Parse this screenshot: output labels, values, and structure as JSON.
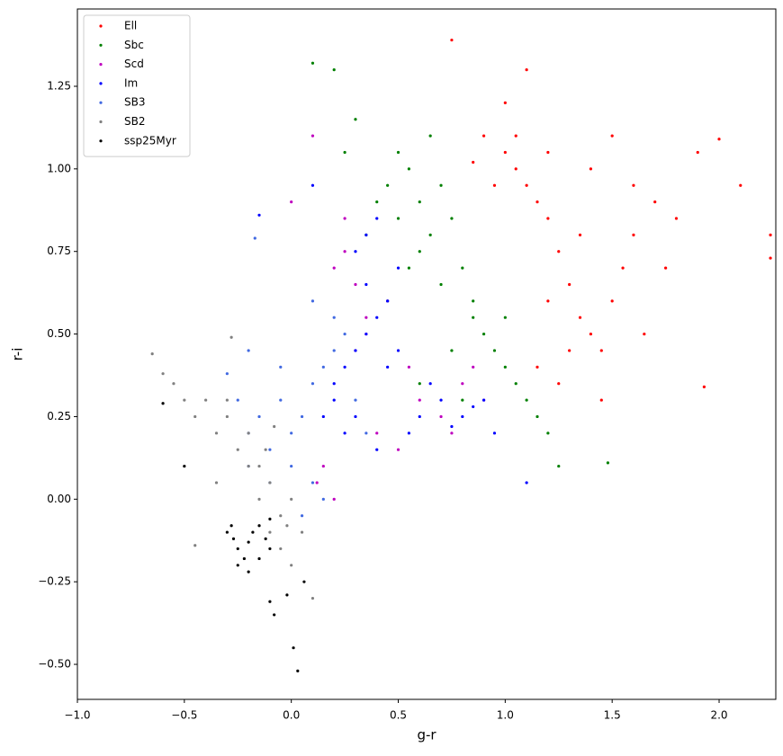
{
  "chart_data": {
    "type": "scatter",
    "xlabel": "g-r",
    "ylabel": "r-i",
    "xlim": [
      -1.0,
      2.265
    ],
    "ylim": [
      -0.606,
      1.484
    ],
    "xticks": [
      {
        "value": -1.0,
        "label": "−1.0"
      },
      {
        "value": -0.5,
        "label": "−0.5"
      },
      {
        "value": 0.0,
        "label": "0.0"
      },
      {
        "value": 0.5,
        "label": "0.5"
      },
      {
        "value": 1.0,
        "label": "1.0"
      },
      {
        "value": 1.5,
        "label": "1.5"
      },
      {
        "value": 2.0,
        "label": "2.0"
      }
    ],
    "yticks": [
      {
        "value": -0.5,
        "label": "−0.50"
      },
      {
        "value": -0.25,
        "label": "−0.25"
      },
      {
        "value": 0.0,
        "label": "0.00"
      },
      {
        "value": 0.25,
        "label": "0.25"
      },
      {
        "value": 0.5,
        "label": "0.50"
      },
      {
        "value": 0.75,
        "label": "0.75"
      },
      {
        "value": 1.0,
        "label": "1.00"
      },
      {
        "value": 1.25,
        "label": "1.25"
      }
    ],
    "legend": "upper left",
    "series": [
      {
        "name": "Ell",
        "color": "#ff0000",
        "x": [
          0.75,
          0.9,
          1.0,
          1.05,
          1.1,
          1.15,
          1.2,
          1.25,
          1.3,
          1.35,
          1.4,
          1.45,
          1.5,
          1.55,
          1.6,
          1.7,
          1.8,
          1.9,
          2.0,
          2.1,
          2.24,
          2.24,
          1.93,
          1.0,
          1.1,
          1.2,
          1.3,
          1.25,
          1.15,
          0.95,
          1.4,
          1.5,
          1.65,
          1.75,
          1.05,
          1.35,
          1.2,
          0.85,
          1.6,
          1.45
        ],
        "y": [
          1.39,
          1.1,
          1.05,
          1.0,
          0.95,
          0.9,
          0.85,
          0.75,
          0.65,
          0.55,
          0.5,
          0.45,
          0.6,
          0.7,
          0.8,
          0.9,
          0.85,
          1.05,
          1.09,
          0.95,
          0.8,
          0.73,
          0.34,
          1.2,
          1.3,
          0.6,
          0.45,
          0.35,
          0.4,
          0.95,
          1.0,
          1.1,
          0.5,
          0.7,
          1.1,
          0.8,
          1.05,
          1.02,
          0.95,
          0.3
        ]
      },
      {
        "name": "Sbc",
        "color": "#008000",
        "x": [
          0.4,
          0.45,
          0.5,
          0.55,
          0.6,
          0.65,
          0.7,
          0.75,
          0.8,
          0.85,
          0.5,
          0.6,
          0.7,
          0.9,
          1.0,
          1.05,
          1.1,
          1.15,
          0.95,
          0.85,
          0.3,
          0.25,
          0.1,
          0.2,
          1.25,
          1.48,
          0.65,
          0.55,
          0.45,
          1.2,
          0.75,
          0.35,
          1.0,
          0.8,
          0.6
        ],
        "y": [
          0.9,
          0.95,
          0.85,
          1.0,
          0.9,
          0.8,
          0.95,
          0.85,
          0.7,
          0.6,
          1.05,
          0.75,
          0.65,
          0.5,
          0.4,
          0.35,
          0.3,
          0.25,
          0.45,
          0.55,
          1.15,
          1.05,
          1.32,
          1.3,
          0.1,
          0.11,
          1.1,
          0.7,
          0.6,
          0.2,
          0.45,
          0.8,
          0.55,
          0.3,
          0.35
        ]
      },
      {
        "name": "Scd",
        "color": "#bf00bf",
        "x": [
          0.2,
          0.25,
          0.3,
          0.35,
          0.3,
          0.25,
          0.15,
          0.2,
          0.6,
          0.7,
          0.8,
          0.9,
          0.75,
          0.5,
          0.4,
          0.1,
          0.0,
          0.55,
          0.85,
          0.35,
          0.12,
          0.45
        ],
        "y": [
          0.7,
          0.75,
          0.65,
          0.55,
          0.45,
          0.85,
          0.1,
          0.0,
          0.3,
          0.25,
          0.35,
          0.3,
          0.2,
          0.15,
          0.2,
          1.1,
          0.9,
          0.4,
          0.4,
          0.5,
          0.05,
          0.6
        ]
      },
      {
        "name": "Im",
        "color": "#0000ff",
        "x": [
          0.2,
          0.25,
          0.3,
          0.35,
          0.4,
          0.45,
          0.3,
          0.25,
          0.2,
          0.15,
          0.35,
          0.4,
          0.5,
          0.6,
          0.7,
          0.8,
          0.9,
          0.55,
          0.65,
          0.75,
          0.85,
          0.45,
          0.4,
          0.35,
          1.1,
          0.1,
          -0.15,
          0.5,
          0.3,
          0.95
        ],
        "y": [
          0.3,
          0.4,
          0.45,
          0.5,
          0.55,
          0.6,
          0.25,
          0.2,
          0.35,
          0.25,
          0.8,
          0.85,
          0.7,
          0.25,
          0.3,
          0.25,
          0.3,
          0.2,
          0.35,
          0.22,
          0.28,
          0.4,
          0.15,
          0.65,
          0.05,
          0.95,
          0.86,
          0.45,
          0.75,
          0.2
        ]
      },
      {
        "name": "SB3",
        "color": "#4169e1",
        "x": [
          -0.2,
          -0.15,
          -0.1,
          -0.05,
          0.0,
          0.05,
          0.1,
          0.15,
          0.2,
          -0.1,
          0.0,
          0.1,
          0.2,
          0.25,
          0.3,
          -0.25,
          -0.3,
          -0.2,
          0.05,
          0.15,
          -0.05,
          0.1,
          -0.2,
          0.35,
          -0.17
        ],
        "y": [
          0.2,
          0.25,
          0.15,
          0.3,
          0.2,
          0.25,
          0.35,
          0.4,
          0.45,
          0.05,
          0.1,
          0.05,
          0.55,
          0.5,
          0.3,
          0.3,
          0.38,
          0.45,
          -0.05,
          0.0,
          0.4,
          0.6,
          0.1,
          0.2,
          0.79
        ]
      },
      {
        "name": "SB2",
        "color": "#808080",
        "x": [
          -0.65,
          -0.6,
          -0.55,
          -0.5,
          -0.45,
          -0.4,
          -0.35,
          -0.3,
          -0.25,
          -0.2,
          -0.15,
          -0.1,
          -0.05,
          0.0,
          -0.1,
          -0.05,
          0.0,
          0.05,
          -0.15,
          -0.2,
          -0.3,
          -0.35,
          -0.45,
          0.1,
          -0.12,
          -0.08,
          -0.02,
          -0.28
        ],
        "y": [
          0.44,
          0.38,
          0.35,
          0.3,
          0.25,
          0.3,
          0.2,
          0.25,
          0.15,
          0.2,
          0.1,
          0.05,
          -0.05,
          0.0,
          -0.1,
          -0.15,
          -0.2,
          -0.1,
          0.0,
          0.1,
          0.3,
          0.05,
          -0.14,
          -0.3,
          0.15,
          0.22,
          -0.08,
          0.49
        ]
      },
      {
        "name": "ssp25Myr",
        "color": "#000000",
        "x": [
          -0.3,
          -0.27,
          -0.25,
          -0.22,
          -0.2,
          -0.18,
          -0.15,
          -0.12,
          -0.1,
          -0.25,
          -0.2,
          -0.15,
          -0.28,
          -0.1,
          0.03,
          0.01,
          -0.08,
          -0.1,
          -0.6,
          -0.5,
          -0.02,
          0.06
        ],
        "y": [
          -0.1,
          -0.12,
          -0.15,
          -0.18,
          -0.13,
          -0.1,
          -0.08,
          -0.12,
          -0.15,
          -0.2,
          -0.22,
          -0.18,
          -0.08,
          -0.06,
          -0.52,
          -0.45,
          -0.35,
          -0.31,
          0.29,
          0.1,
          -0.29,
          -0.25
        ]
      }
    ]
  }
}
